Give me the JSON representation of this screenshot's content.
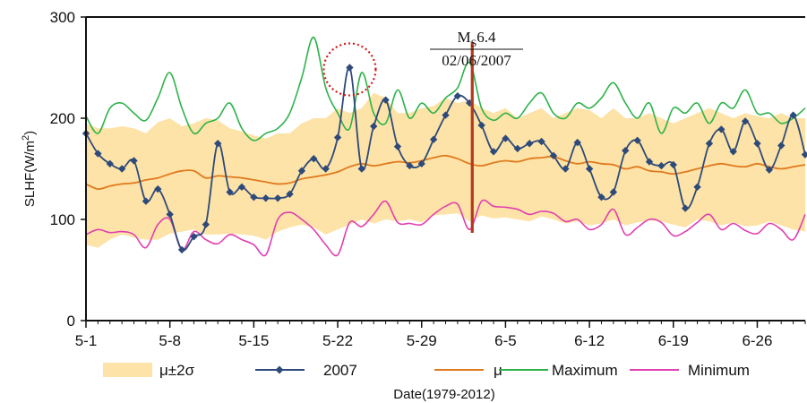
{
  "chart_data": {
    "type": "line",
    "xlabel": "Date(1979-2012)",
    "ylabel": "SLHF(W/m2)",
    "ylim": [
      0,
      300
    ],
    "yticks": [
      0,
      100,
      200,
      300
    ],
    "xtick_labels": [
      "5-1",
      "5-8",
      "5-15",
      "5-22",
      "5-29",
      "6-5",
      "6-12",
      "6-19",
      "6-26"
    ],
    "x_start": "5-1",
    "legend_position": "bottom",
    "colors": {
      "band": "#fde3a7",
      "y2007": "#2e4a7a",
      "mean": "#e07a1e",
      "maximum": "#2eb34a",
      "minimum": "#e040b0",
      "event_line": "#b5391c",
      "circle": "#d11a1a"
    },
    "legend": [
      {
        "key": "band",
        "label": "μ±2σ"
      },
      {
        "key": "y2007",
        "label": "2007"
      },
      {
        "key": "mean",
        "label": "μ"
      },
      {
        "key": "maximum",
        "label": "Maximum"
      },
      {
        "key": "minimum",
        "label": "Minimum"
      }
    ],
    "annotation": {
      "event_date": "6-2",
      "magnitude_prefix": "M",
      "magnitude_sub": "S",
      "magnitude_value": "6.4",
      "date_text": "02/06/2007",
      "circled_date": "5-23"
    },
    "series": [
      {
        "name": "2007",
        "key": "y2007",
        "values": [
          185,
          165,
          155,
          150,
          158,
          118,
          130,
          105,
          70,
          83,
          95,
          175,
          127,
          132,
          122,
          121,
          121,
          125,
          148,
          160,
          150,
          181,
          250,
          150,
          192,
          218,
          172,
          153,
          155,
          179,
          203,
          222,
          215,
          193,
          167,
          180,
          170,
          175,
          177,
          163,
          150,
          176,
          150,
          122,
          127,
          168,
          178,
          157,
          153,
          154,
          111,
          132,
          175,
          189,
          167,
          197,
          175,
          149,
          173,
          203,
          164
        ]
      },
      {
        "name": "μ",
        "key": "mean",
        "values": [
          135,
          130,
          133,
          135,
          136,
          139,
          141,
          145,
          148,
          148,
          141,
          143,
          142,
          141,
          139,
          137,
          135,
          136,
          140,
          142,
          144,
          147,
          152,
          155,
          153,
          155,
          157,
          156,
          158,
          161,
          163,
          160,
          155,
          153,
          156,
          158,
          157,
          160,
          161,
          162,
          158,
          155,
          157,
          155,
          154,
          150,
          152,
          148,
          147,
          145,
          147,
          150,
          153,
          155,
          153,
          152,
          155,
          152,
          150,
          152,
          154
        ]
      },
      {
        "name": "Maximum",
        "key": "maximum",
        "values": [
          202,
          185,
          210,
          215,
          205,
          198,
          220,
          245,
          210,
          185,
          195,
          200,
          215,
          190,
          178,
          185,
          190,
          205,
          240,
          280,
          230,
          205,
          190,
          245,
          205,
          195,
          228,
          200,
          215,
          205,
          220,
          230,
          255,
          210,
          198,
          205,
          200,
          215,
          225,
          205,
          200,
          215,
          210,
          220,
          235,
          215,
          200,
          215,
          185,
          210,
          205,
          215,
          195,
          215,
          210,
          228,
          205,
          205,
          195,
          200,
          210
        ]
      },
      {
        "name": "Minimum",
        "key": "minimum",
        "values": [
          85,
          90,
          87,
          88,
          85,
          72,
          95,
          100,
          70,
          88,
          80,
          76,
          85,
          80,
          75,
          65,
          100,
          107,
          100,
          90,
          75,
          65,
          97,
          93,
          105,
          118,
          97,
          96,
          95,
          105,
          113,
          115,
          90,
          118,
          113,
          112,
          110,
          105,
          108,
          106,
          98,
          100,
          90,
          95,
          110,
          85,
          92,
          100,
          97,
          84,
          88,
          97,
          105,
          90,
          96,
          89,
          86,
          96,
          90,
          80,
          105
        ]
      },
      {
        "name": "μ+2σ",
        "key": "band_upper",
        "values": [
          195,
          190,
          190,
          192,
          190,
          185,
          196,
          200,
          192,
          195,
          200,
          198,
          190,
          187,
          183,
          180,
          185,
          185,
          195,
          200,
          200,
          210,
          205,
          210,
          225,
          220,
          205,
          205,
          210,
          212,
          220,
          215,
          218,
          210,
          205,
          210,
          200,
          205,
          210,
          200,
          205,
          210,
          208,
          200,
          210,
          200,
          200,
          205,
          200,
          195,
          200,
          205,
          210,
          205,
          200,
          205,
          202,
          200,
          205,
          200,
          200
        ]
      },
      {
        "name": "μ−2σ",
        "key": "band_lower",
        "values": [
          75,
          72,
          80,
          85,
          82,
          80,
          80,
          86,
          88,
          90,
          85,
          85,
          86,
          85,
          84,
          80,
          88,
          92,
          95,
          92,
          85,
          90,
          95,
          100,
          96,
          100,
          98,
          100,
          97,
          104,
          105,
          106,
          98,
          104,
          101,
          102,
          100,
          98,
          103,
          100,
          96,
          98,
          94,
          96,
          100,
          94,
          97,
          99,
          98,
          95,
          92,
          100,
          98,
          94,
          97,
          93,
          94,
          98,
          94,
          90,
          88
        ]
      }
    ]
  }
}
